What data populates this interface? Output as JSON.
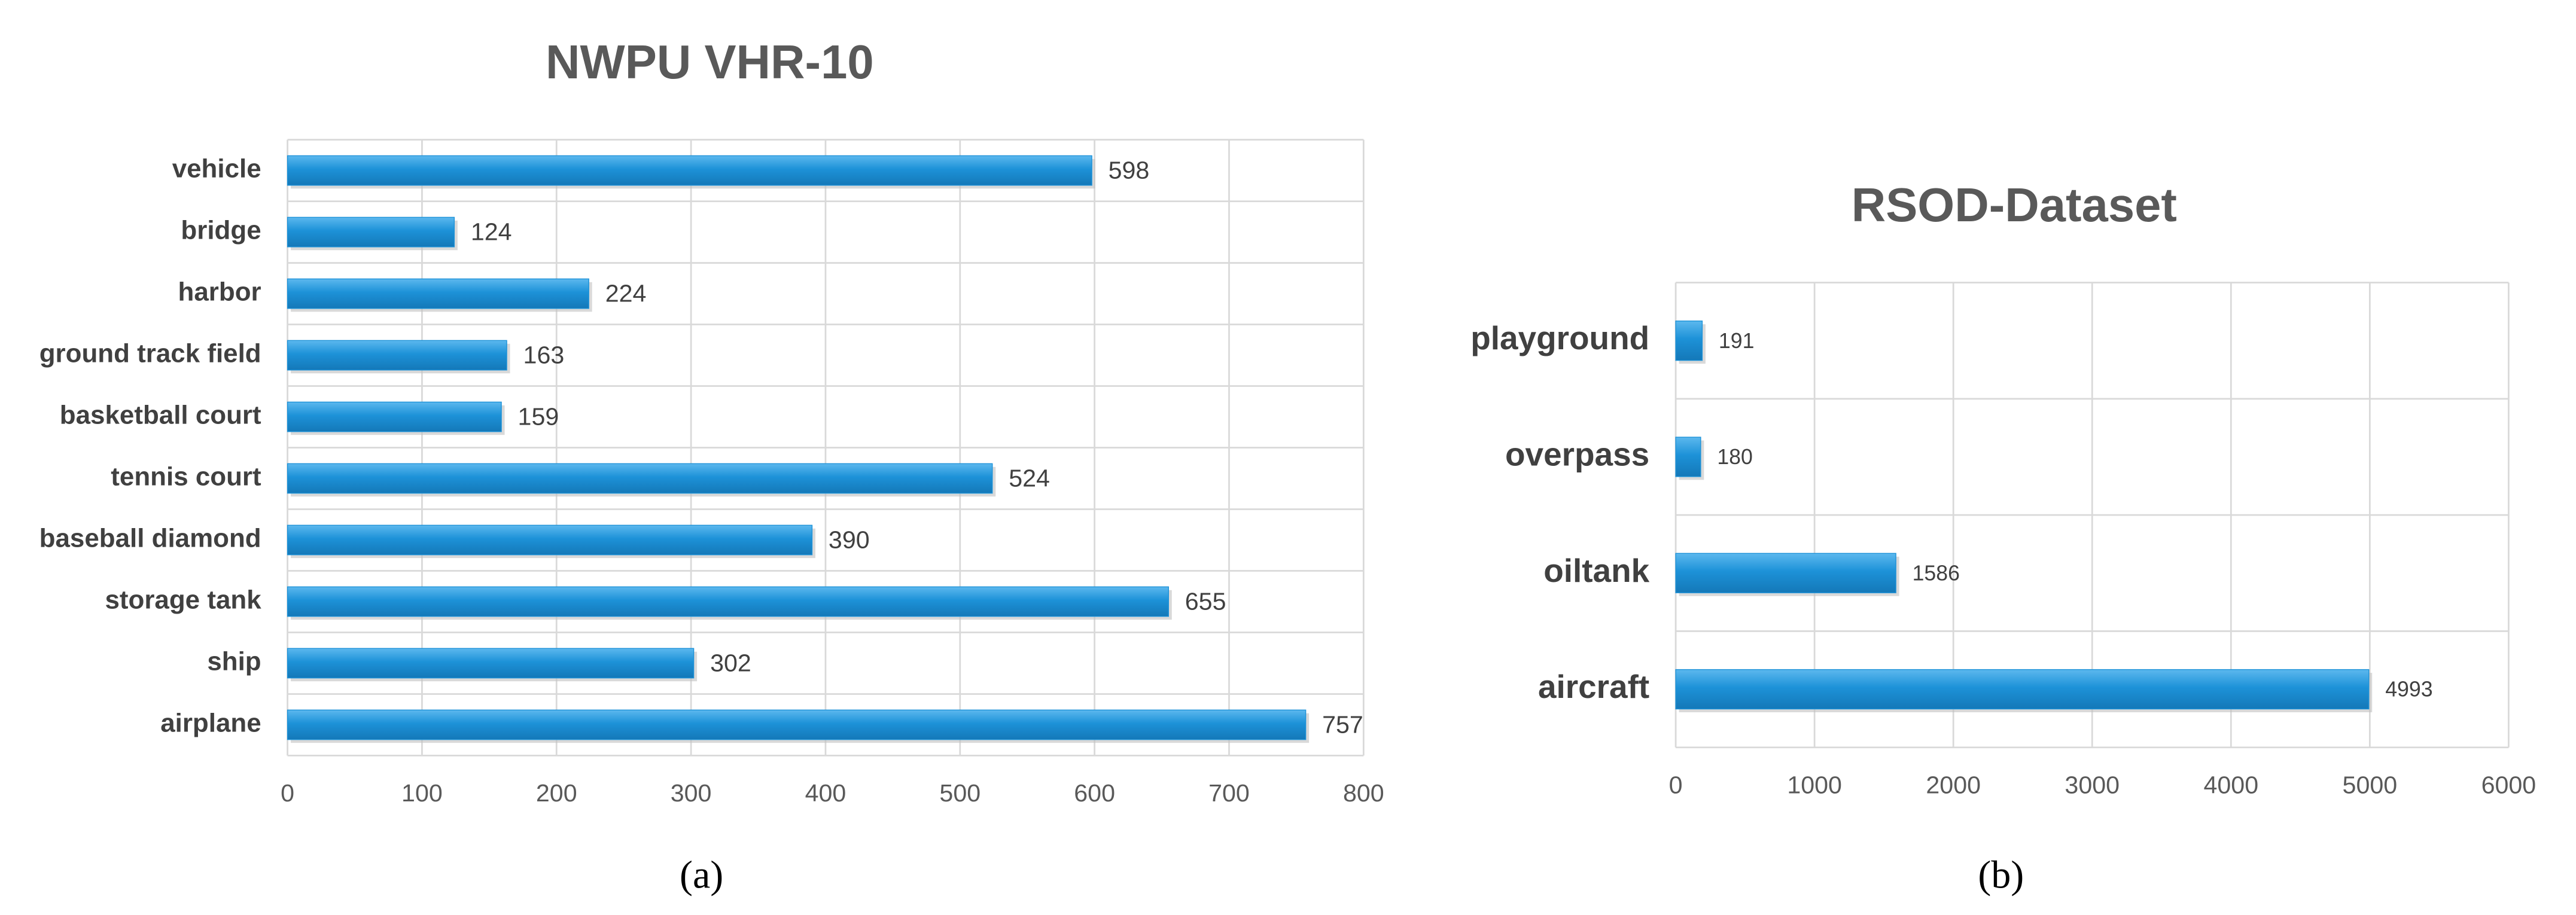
{
  "chart_data": [
    {
      "type": "barh",
      "title": "NWPU VHR-10",
      "caption": "(a)",
      "categories": [
        "vehicle",
        "bridge",
        "harbor",
        "ground track field",
        "basketball court",
        "tennis court",
        "baseball diamond",
        "storage tank",
        "ship",
        "airplane"
      ],
      "values": [
        598,
        124,
        224,
        163,
        159,
        524,
        390,
        655,
        302,
        757
      ],
      "color": "#1d92d8",
      "xlim": [
        0,
        800
      ],
      "xticks": [
        0,
        100,
        200,
        300,
        400,
        500,
        600,
        700,
        800
      ],
      "grid": true
    },
    {
      "type": "barh",
      "title": "RSOD-Dataset",
      "caption": "(b)",
      "categories": [
        "playground",
        "overpass",
        "oiltank",
        "aircraft"
      ],
      "values": [
        191,
        180,
        1586,
        4993
      ],
      "color": "#1d92d8",
      "xlim": [
        0,
        6000
      ],
      "xticks": [
        0,
        1000,
        2000,
        3000,
        4000,
        5000,
        6000
      ],
      "grid": true
    }
  ]
}
